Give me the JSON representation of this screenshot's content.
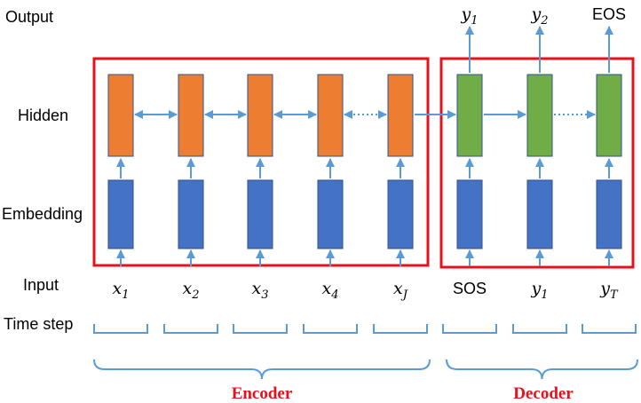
{
  "row_labels": {
    "output": "Output",
    "hidden": "Hidden",
    "embedding": "Embedding",
    "input": "Input",
    "time_step": "Time step"
  },
  "encoder": {
    "label": "Encoder",
    "inputs": [
      {
        "base": "x",
        "sub": "1"
      },
      {
        "base": "x",
        "sub": "2"
      },
      {
        "base": "x",
        "sub": "3"
      },
      {
        "base": "x",
        "sub": "4"
      },
      {
        "base": "x",
        "sub": "J"
      }
    ]
  },
  "decoder": {
    "label": "Decoder",
    "inputs": [
      {
        "text": "SOS"
      },
      {
        "base": "y",
        "sub": "1"
      },
      {
        "base": "y",
        "sub": "T"
      }
    ],
    "outputs": [
      {
        "base": "y",
        "sub": "1"
      },
      {
        "base": "y",
        "sub": "2"
      },
      {
        "text": "EOS"
      }
    ]
  },
  "colors": {
    "encoder_hidden": "#ed7d31",
    "decoder_hidden": "#70ad47",
    "embedding": "#4472c4",
    "arrows": "#5b9bd5",
    "box": "#e8101a",
    "section_label": "#e8101a"
  }
}
